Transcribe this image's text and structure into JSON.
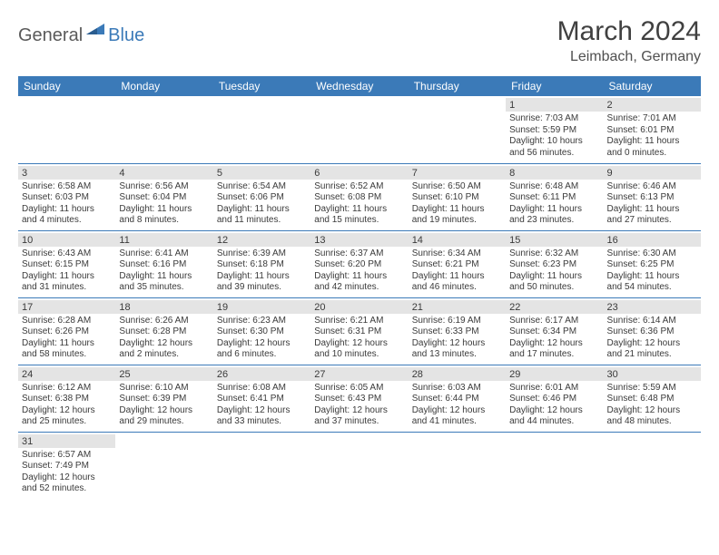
{
  "logo": {
    "text1": "General",
    "text2": "Blue"
  },
  "title": "March 2024",
  "location": "Leimbach, Germany",
  "colors": {
    "header_bg": "#3b7ab8",
    "header_fg": "#ffffff",
    "daynum_bg": "#e4e4e4",
    "text": "#3a3a3a",
    "rule": "#3b7ab8"
  },
  "weekdays": [
    "Sunday",
    "Monday",
    "Tuesday",
    "Wednesday",
    "Thursday",
    "Friday",
    "Saturday"
  ],
  "weeks": [
    [
      null,
      null,
      null,
      null,
      null,
      {
        "n": "1",
        "sr": "Sunrise: 7:03 AM",
        "ss": "Sunset: 5:59 PM",
        "d1": "Daylight: 10 hours",
        "d2": "and 56 minutes."
      },
      {
        "n": "2",
        "sr": "Sunrise: 7:01 AM",
        "ss": "Sunset: 6:01 PM",
        "d1": "Daylight: 11 hours",
        "d2": "and 0 minutes."
      }
    ],
    [
      {
        "n": "3",
        "sr": "Sunrise: 6:58 AM",
        "ss": "Sunset: 6:03 PM",
        "d1": "Daylight: 11 hours",
        "d2": "and 4 minutes."
      },
      {
        "n": "4",
        "sr": "Sunrise: 6:56 AM",
        "ss": "Sunset: 6:04 PM",
        "d1": "Daylight: 11 hours",
        "d2": "and 8 minutes."
      },
      {
        "n": "5",
        "sr": "Sunrise: 6:54 AM",
        "ss": "Sunset: 6:06 PM",
        "d1": "Daylight: 11 hours",
        "d2": "and 11 minutes."
      },
      {
        "n": "6",
        "sr": "Sunrise: 6:52 AM",
        "ss": "Sunset: 6:08 PM",
        "d1": "Daylight: 11 hours",
        "d2": "and 15 minutes."
      },
      {
        "n": "7",
        "sr": "Sunrise: 6:50 AM",
        "ss": "Sunset: 6:10 PM",
        "d1": "Daylight: 11 hours",
        "d2": "and 19 minutes."
      },
      {
        "n": "8",
        "sr": "Sunrise: 6:48 AM",
        "ss": "Sunset: 6:11 PM",
        "d1": "Daylight: 11 hours",
        "d2": "and 23 minutes."
      },
      {
        "n": "9",
        "sr": "Sunrise: 6:46 AM",
        "ss": "Sunset: 6:13 PM",
        "d1": "Daylight: 11 hours",
        "d2": "and 27 minutes."
      }
    ],
    [
      {
        "n": "10",
        "sr": "Sunrise: 6:43 AM",
        "ss": "Sunset: 6:15 PM",
        "d1": "Daylight: 11 hours",
        "d2": "and 31 minutes."
      },
      {
        "n": "11",
        "sr": "Sunrise: 6:41 AM",
        "ss": "Sunset: 6:16 PM",
        "d1": "Daylight: 11 hours",
        "d2": "and 35 minutes."
      },
      {
        "n": "12",
        "sr": "Sunrise: 6:39 AM",
        "ss": "Sunset: 6:18 PM",
        "d1": "Daylight: 11 hours",
        "d2": "and 39 minutes."
      },
      {
        "n": "13",
        "sr": "Sunrise: 6:37 AM",
        "ss": "Sunset: 6:20 PM",
        "d1": "Daylight: 11 hours",
        "d2": "and 42 minutes."
      },
      {
        "n": "14",
        "sr": "Sunrise: 6:34 AM",
        "ss": "Sunset: 6:21 PM",
        "d1": "Daylight: 11 hours",
        "d2": "and 46 minutes."
      },
      {
        "n": "15",
        "sr": "Sunrise: 6:32 AM",
        "ss": "Sunset: 6:23 PM",
        "d1": "Daylight: 11 hours",
        "d2": "and 50 minutes."
      },
      {
        "n": "16",
        "sr": "Sunrise: 6:30 AM",
        "ss": "Sunset: 6:25 PM",
        "d1": "Daylight: 11 hours",
        "d2": "and 54 minutes."
      }
    ],
    [
      {
        "n": "17",
        "sr": "Sunrise: 6:28 AM",
        "ss": "Sunset: 6:26 PM",
        "d1": "Daylight: 11 hours",
        "d2": "and 58 minutes."
      },
      {
        "n": "18",
        "sr": "Sunrise: 6:26 AM",
        "ss": "Sunset: 6:28 PM",
        "d1": "Daylight: 12 hours",
        "d2": "and 2 minutes."
      },
      {
        "n": "19",
        "sr": "Sunrise: 6:23 AM",
        "ss": "Sunset: 6:30 PM",
        "d1": "Daylight: 12 hours",
        "d2": "and 6 minutes."
      },
      {
        "n": "20",
        "sr": "Sunrise: 6:21 AM",
        "ss": "Sunset: 6:31 PM",
        "d1": "Daylight: 12 hours",
        "d2": "and 10 minutes."
      },
      {
        "n": "21",
        "sr": "Sunrise: 6:19 AM",
        "ss": "Sunset: 6:33 PM",
        "d1": "Daylight: 12 hours",
        "d2": "and 13 minutes."
      },
      {
        "n": "22",
        "sr": "Sunrise: 6:17 AM",
        "ss": "Sunset: 6:34 PM",
        "d1": "Daylight: 12 hours",
        "d2": "and 17 minutes."
      },
      {
        "n": "23",
        "sr": "Sunrise: 6:14 AM",
        "ss": "Sunset: 6:36 PM",
        "d1": "Daylight: 12 hours",
        "d2": "and 21 minutes."
      }
    ],
    [
      {
        "n": "24",
        "sr": "Sunrise: 6:12 AM",
        "ss": "Sunset: 6:38 PM",
        "d1": "Daylight: 12 hours",
        "d2": "and 25 minutes."
      },
      {
        "n": "25",
        "sr": "Sunrise: 6:10 AM",
        "ss": "Sunset: 6:39 PM",
        "d1": "Daylight: 12 hours",
        "d2": "and 29 minutes."
      },
      {
        "n": "26",
        "sr": "Sunrise: 6:08 AM",
        "ss": "Sunset: 6:41 PM",
        "d1": "Daylight: 12 hours",
        "d2": "and 33 minutes."
      },
      {
        "n": "27",
        "sr": "Sunrise: 6:05 AM",
        "ss": "Sunset: 6:43 PM",
        "d1": "Daylight: 12 hours",
        "d2": "and 37 minutes."
      },
      {
        "n": "28",
        "sr": "Sunrise: 6:03 AM",
        "ss": "Sunset: 6:44 PM",
        "d1": "Daylight: 12 hours",
        "d2": "and 41 minutes."
      },
      {
        "n": "29",
        "sr": "Sunrise: 6:01 AM",
        "ss": "Sunset: 6:46 PM",
        "d1": "Daylight: 12 hours",
        "d2": "and 44 minutes."
      },
      {
        "n": "30",
        "sr": "Sunrise: 5:59 AM",
        "ss": "Sunset: 6:48 PM",
        "d1": "Daylight: 12 hours",
        "d2": "and 48 minutes."
      }
    ],
    [
      {
        "n": "31",
        "sr": "Sunrise: 6:57 AM",
        "ss": "Sunset: 7:49 PM",
        "d1": "Daylight: 12 hours",
        "d2": "and 52 minutes."
      },
      null,
      null,
      null,
      null,
      null,
      null
    ]
  ]
}
